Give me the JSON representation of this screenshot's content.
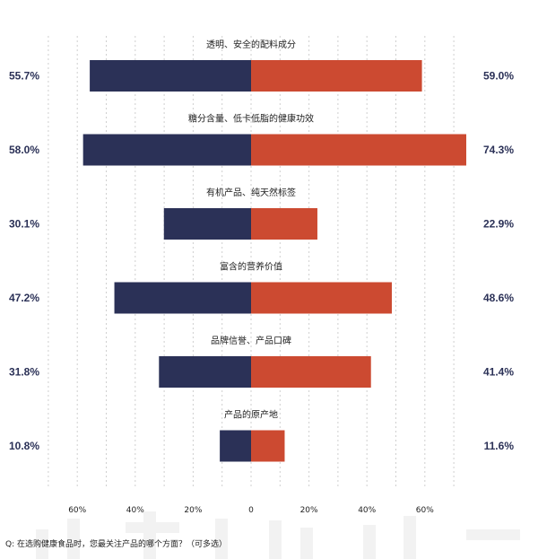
{
  "chart_data": {
    "type": "bar",
    "orientation": "horizontal-diverging",
    "categories": [
      "透明、安全的配料成分",
      "糖分含量、低卡低脂的健康功效",
      "有机产品、纯天然标签",
      "富含的营养价值",
      "品牌信誉、产品口碑",
      "产品的原产地"
    ],
    "series": [
      {
        "values": [
          55.7,
          58.0,
          30.1,
          47.2,
          31.8,
          10.8
        ],
        "color": "#2b3157",
        "side": "left"
      },
      {
        "values": [
          59.0,
          74.3,
          22.9,
          48.6,
          41.4,
          11.6
        ],
        "color": "#cc4a31",
        "side": "right"
      }
    ],
    "left_labels": [
      "55.7%",
      "58.0%",
      "30.1%",
      "47.2%",
      "31.8%",
      "10.8%"
    ],
    "right_labels": [
      "59.0%",
      "74.3%",
      "22.9%",
      "48.6%",
      "41.4%",
      "11.6%"
    ],
    "x_ticks": [
      {
        "value": -60,
        "label": "60%"
      },
      {
        "value": -40,
        "label": "40%"
      },
      {
        "value": -20,
        "label": "20%"
      },
      {
        "value": 0,
        "label": "0"
      },
      {
        "value": 20,
        "label": "20%"
      },
      {
        "value": 40,
        "label": "40%"
      },
      {
        "value": 60,
        "label": "60%"
      }
    ],
    "xlim": [
      -70,
      75
    ],
    "grid": "vertical dashed",
    "label_color": "#2b3157"
  },
  "footnote": "Q: 在选购健康食品时，您最关注产品的哪个方面？（可多选）"
}
